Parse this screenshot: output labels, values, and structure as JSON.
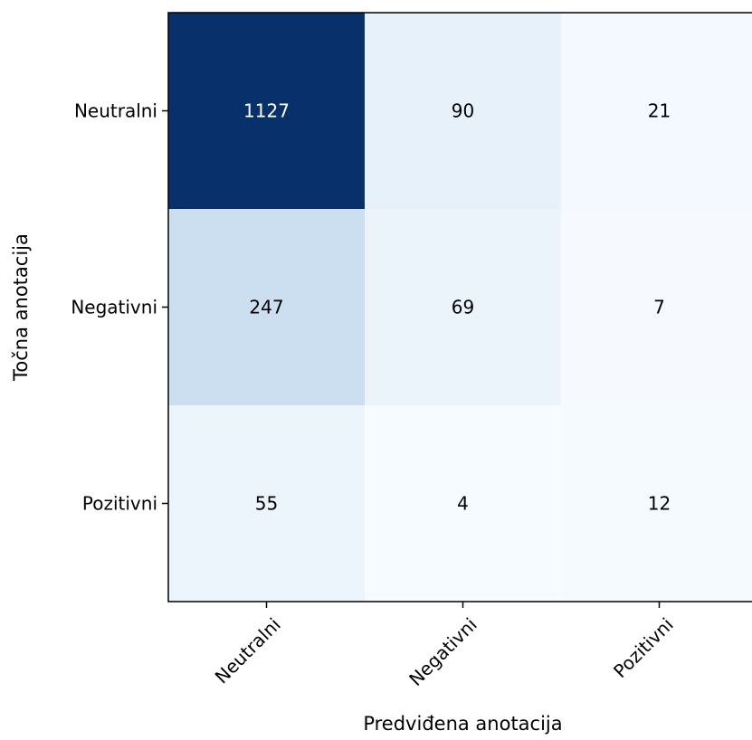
{
  "chart_data": {
    "type": "heatmap",
    "title": "",
    "xlabel": "Predviđena anotacija",
    "ylabel": "Točna anotacija",
    "x_categories": [
      "Neutralni",
      "Negativni",
      "Pozitivni"
    ],
    "y_categories": [
      "Neutralni",
      "Negativni",
      "Pozitivni"
    ],
    "values": [
      [
        1127,
        90,
        21
      ],
      [
        247,
        69,
        7
      ],
      [
        55,
        4,
        12
      ]
    ],
    "colormap": "Blues",
    "value_range": [
      0,
      1127
    ],
    "colorbar": false,
    "grid": false,
    "x_tick_rotation_deg": 45
  }
}
